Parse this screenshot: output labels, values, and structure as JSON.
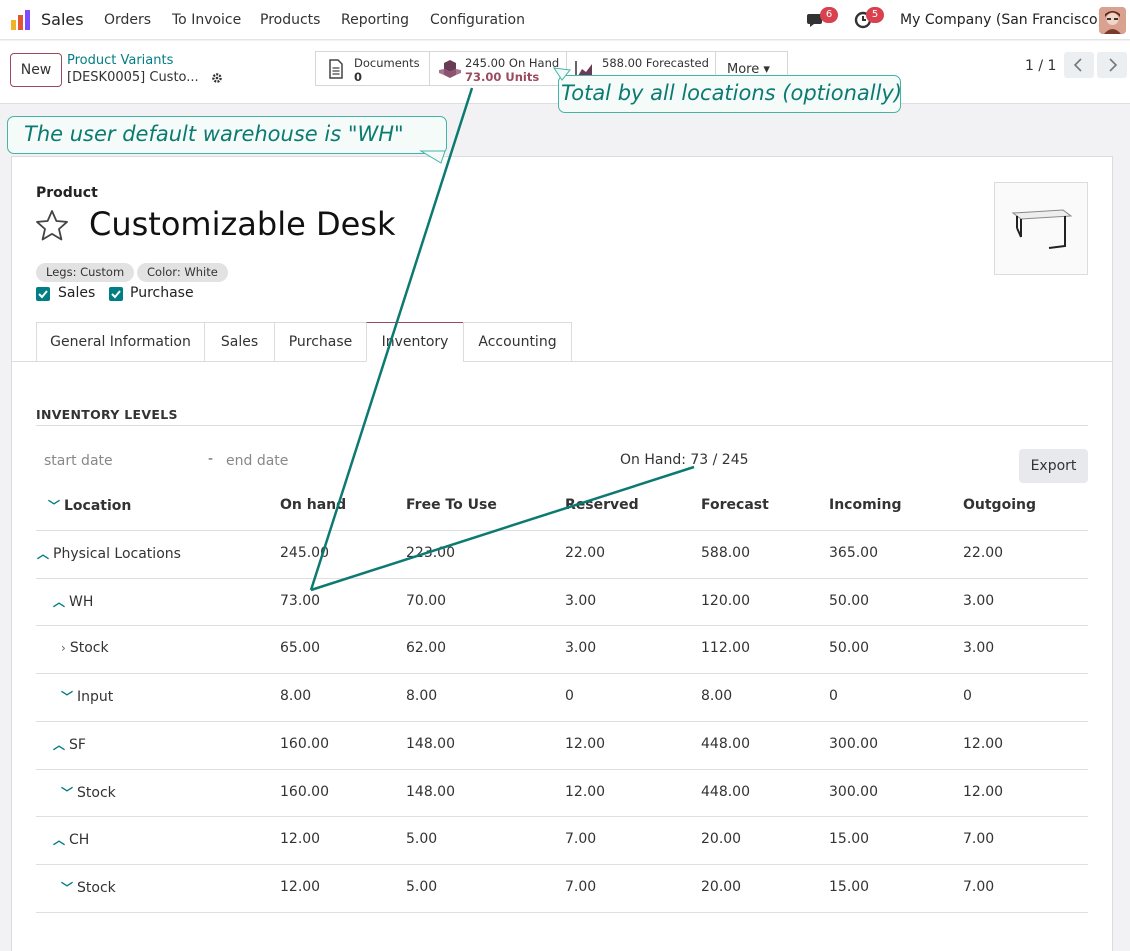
{
  "navbar": {
    "app_name": "Sales",
    "menu": [
      "Orders",
      "To Invoice",
      "Products",
      "Reporting",
      "Configuration"
    ],
    "messages_count": "6",
    "activities_count": "5",
    "company": "My Company (San Francisco)"
  },
  "control": {
    "new_label": "New",
    "breadcrumb_parent": "Product Variants",
    "breadcrumb_current": "[DESK0005] Custo...",
    "smart_buttons": {
      "documents_label": "Documents",
      "documents_value": "0",
      "onhand_label": "245.00 On Hand",
      "onhand_value": "73.00 Units",
      "forecast_label": "588.00 Forecasted",
      "more_label": "More ▾"
    },
    "pager": "1 / 1"
  },
  "annotations": {
    "total_note": "Total by all locations (optionally)",
    "warehouse_note": "The user default warehouse is \"WH\"",
    "color": "#0d7a72"
  },
  "product": {
    "label": "Product",
    "name": "Customizable Desk",
    "tags": [
      "Legs: Custom",
      "Color: White"
    ],
    "checks": [
      "Sales",
      "Purchase"
    ]
  },
  "tabs": [
    "General Information",
    "Sales",
    "Purchase",
    "Inventory",
    "Accounting"
  ],
  "inventory": {
    "title": "INVENTORY LEVELS",
    "start_placeholder": "start date",
    "dash": "-",
    "end_placeholder": "end date",
    "onhand_summary": "On Hand: 73 / 245",
    "export_label": "Export",
    "headers": [
      "Location",
      "On hand",
      "Free To Use",
      "Reserved",
      "Forecast",
      "Incoming",
      "Outgoing"
    ],
    "rows": [
      {
        "expander": "up",
        "location": "Physical Locations",
        "values": [
          "245.00",
          "223.00",
          "22.00",
          "588.00",
          "365.00",
          "22.00"
        ]
      },
      {
        "expander": "up",
        "location": "WH",
        "values": [
          "73.00",
          "70.00",
          "3.00",
          "120.00",
          "50.00",
          "3.00"
        ]
      },
      {
        "expander": "right",
        "location": "Stock",
        "values": [
          "65.00",
          "62.00",
          "3.00",
          "112.00",
          "50.00",
          "3.00"
        ]
      },
      {
        "expander": "down",
        "location": "Input",
        "values": [
          "8.00",
          "8.00",
          "0",
          "8.00",
          "0",
          "0"
        ]
      },
      {
        "expander": "up",
        "location": "SF",
        "values": [
          "160.00",
          "148.00",
          "12.00",
          "448.00",
          "300.00",
          "12.00"
        ]
      },
      {
        "expander": "down",
        "location": "Stock",
        "values": [
          "160.00",
          "148.00",
          "12.00",
          "448.00",
          "300.00",
          "12.00"
        ]
      },
      {
        "expander": "up",
        "location": "CH",
        "values": [
          "12.00",
          "5.00",
          "7.00",
          "20.00",
          "15.00",
          "7.00"
        ]
      },
      {
        "expander": "down",
        "location": "Stock",
        "values": [
          "12.00",
          "5.00",
          "7.00",
          "20.00",
          "15.00",
          "7.00"
        ]
      }
    ]
  }
}
